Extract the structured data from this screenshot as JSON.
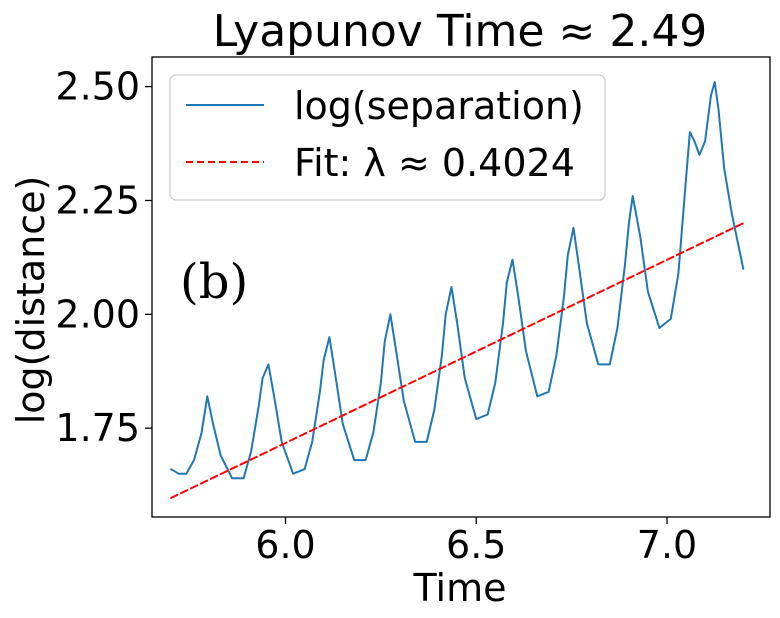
{
  "chart_data": {
    "type": "line",
    "title": "Lyapunov Time ≈ 2.49",
    "xlabel": "Time",
    "ylabel": "log(distance)",
    "xlim": [
      5.65,
      7.27
    ],
    "ylim": [
      1.555,
      2.565
    ],
    "x_ticks": [
      6.0,
      6.5,
      7.0
    ],
    "x_tick_labels": [
      "6.0",
      "6.5",
      "7.0"
    ],
    "y_ticks": [
      1.75,
      2.0,
      2.25,
      2.5
    ],
    "y_tick_labels": [
      "1.75",
      "2.00",
      "2.25",
      "2.50"
    ],
    "grid": false,
    "legend_position": "top-left",
    "annotation": "(b)",
    "series": [
      {
        "name": "log(separation)",
        "style": "solid",
        "color": "#1f77b4",
        "x": [
          5.7,
          5.72,
          5.74,
          5.76,
          5.78,
          5.795,
          5.81,
          5.83,
          5.86,
          5.89,
          5.91,
          5.93,
          5.94,
          5.955,
          5.97,
          5.99,
          6.02,
          6.05,
          6.07,
          6.09,
          6.1,
          6.115,
          6.13,
          6.15,
          6.18,
          6.21,
          6.23,
          6.25,
          6.26,
          6.275,
          6.29,
          6.31,
          6.34,
          6.37,
          6.39,
          6.41,
          6.42,
          6.435,
          6.45,
          6.47,
          6.5,
          6.53,
          6.55,
          6.57,
          6.58,
          6.595,
          6.61,
          6.63,
          6.66,
          6.69,
          6.71,
          6.73,
          6.74,
          6.755,
          6.77,
          6.79,
          6.82,
          6.85,
          6.87,
          6.89,
          6.9,
          6.91,
          6.93,
          6.95,
          6.98,
          7.01,
          7.03,
          7.05,
          7.06,
          7.072,
          7.085,
          7.1,
          7.115,
          7.125,
          7.135,
          7.15,
          7.17,
          7.2
        ],
        "y": [
          1.66,
          1.65,
          1.65,
          1.68,
          1.74,
          1.82,
          1.76,
          1.69,
          1.64,
          1.64,
          1.7,
          1.8,
          1.86,
          1.89,
          1.82,
          1.72,
          1.65,
          1.66,
          1.72,
          1.83,
          1.9,
          1.95,
          1.87,
          1.76,
          1.68,
          1.68,
          1.74,
          1.85,
          1.94,
          2.0,
          1.92,
          1.81,
          1.72,
          1.72,
          1.79,
          1.91,
          2.0,
          2.06,
          1.98,
          1.86,
          1.77,
          1.78,
          1.85,
          1.98,
          2.07,
          2.12,
          2.04,
          1.92,
          1.82,
          1.83,
          1.91,
          2.04,
          2.13,
          2.19,
          2.1,
          1.98,
          1.89,
          1.89,
          1.97,
          2.11,
          2.2,
          2.26,
          2.17,
          2.05,
          1.97,
          1.99,
          2.09,
          2.3,
          2.4,
          2.38,
          2.35,
          2.38,
          2.48,
          2.51,
          2.45,
          2.32,
          2.22,
          2.1
        ]
      },
      {
        "name": "Fit: λ ≈ 0.4024",
        "style": "dashed",
        "color": "#ff0000",
        "x": [
          5.7,
          7.2
        ],
        "y": [
          1.597,
          2.2
        ]
      }
    ]
  }
}
